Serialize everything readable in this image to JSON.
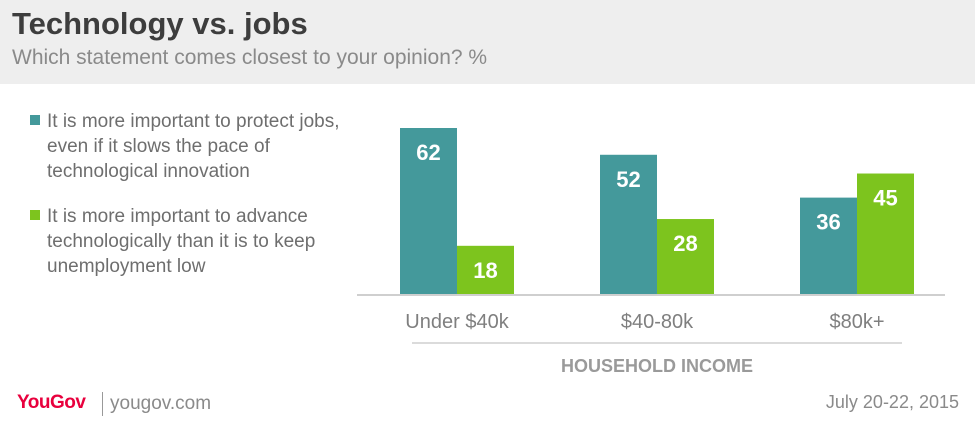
{
  "header": {
    "title": "Technology vs. jobs",
    "subtitle": "Which statement comes closest to your opinion? %"
  },
  "footer": {
    "logo": "YouGov",
    "site": "yougov.com",
    "date": "July 20-22, 2015"
  },
  "colors": {
    "protect_jobs": "#44999b",
    "advance_tech": "#7dc41e",
    "axis_label": "#7f7f7f",
    "axis_title": "#9a9a9a"
  },
  "chart_data": {
    "type": "bar",
    "categories": [
      "Under $40k",
      "$40-80k",
      "$80k+"
    ],
    "series": [
      {
        "name": "It is more important to protect jobs, even if it slows the pace of technological innovation",
        "values": [
          62,
          52,
          36
        ]
      },
      {
        "name": "It is more important to advance technologically than it is to keep unemployment low",
        "values": [
          18,
          28,
          45
        ]
      }
    ],
    "xlabel": "HOUSEHOLD INCOME",
    "ylabel": "",
    "title": "Technology vs. jobs",
    "subtitle": "Which statement comes closest to your opinion? %",
    "ylim": [
      0,
      62
    ],
    "grid": false,
    "legend_position": "left"
  }
}
